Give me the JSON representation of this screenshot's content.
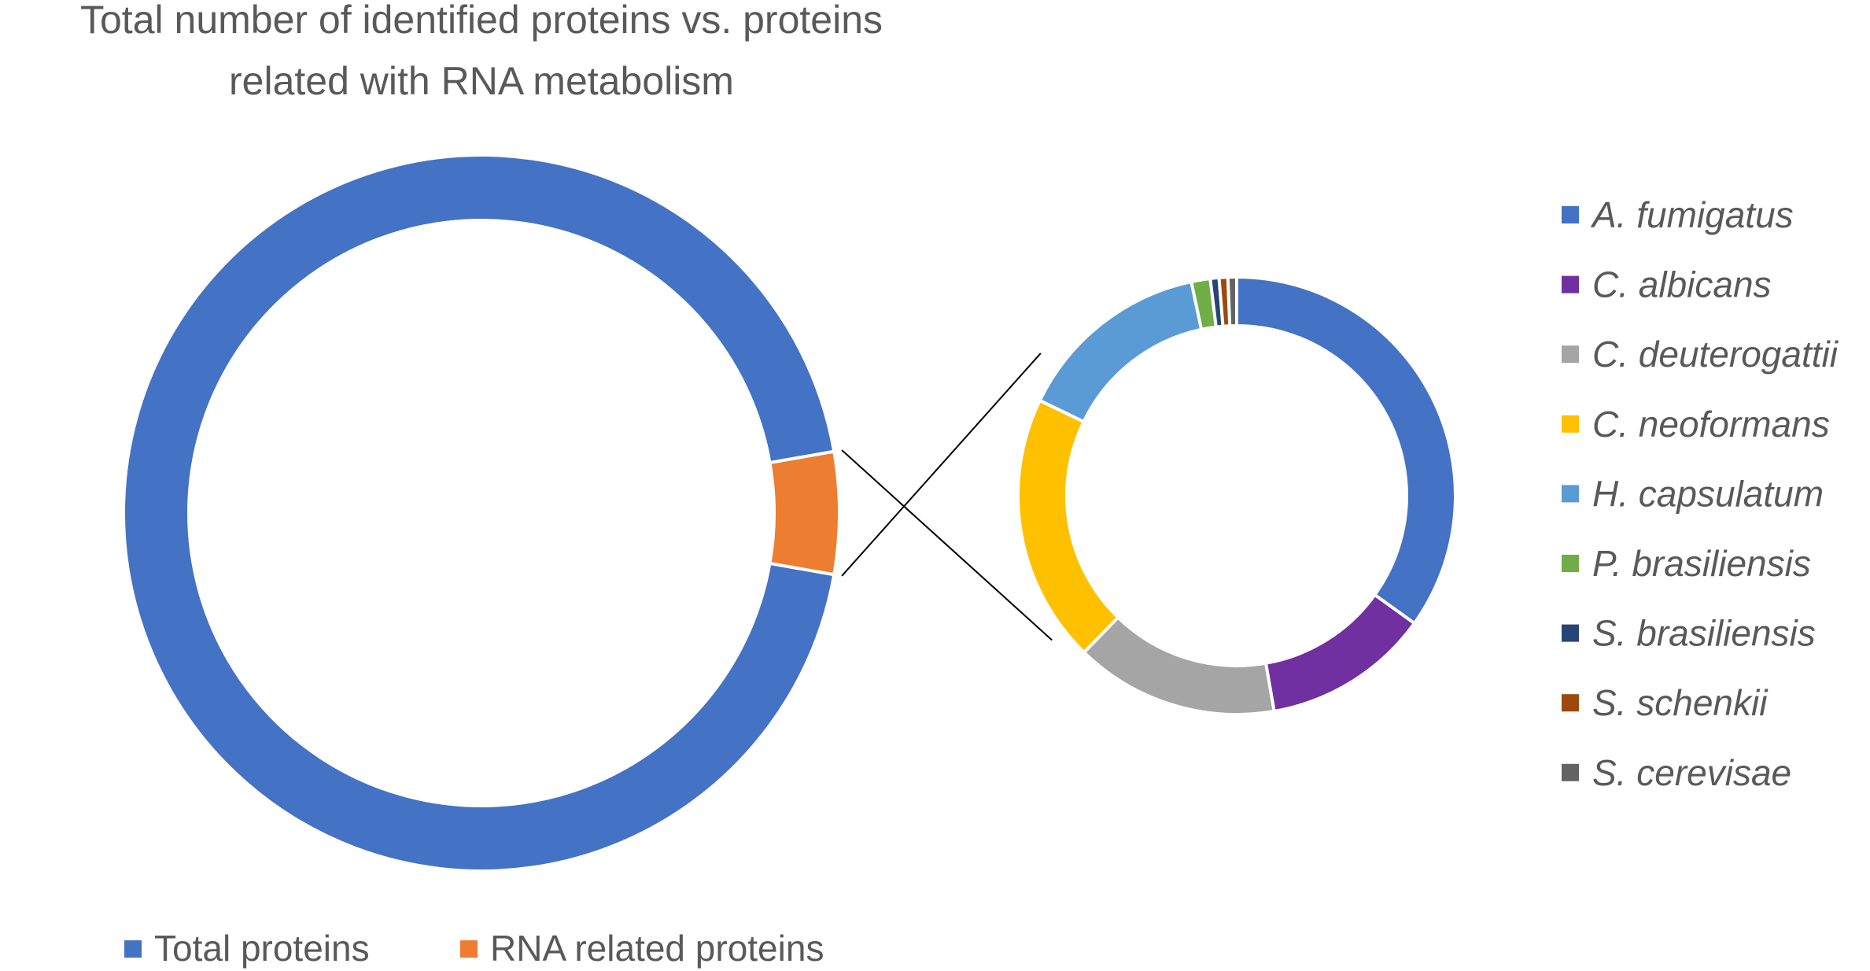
{
  "chart_data": [
    {
      "type": "donut",
      "title": "Total number of identified proteins vs. proteins related with RNA metabolism",
      "title_lines": [
        "Total number of identified proteins vs. proteins",
        "related with RNA metabolism"
      ],
      "legend_position": "bottom",
      "categories": [
        "Total proteins",
        "RNA related proteins"
      ],
      "values": [
        94.5,
        5.5
      ],
      "colors": [
        "#4472C4",
        "#ED7D31"
      ]
    },
    {
      "type": "donut",
      "title": "",
      "legend_position": "right",
      "categories": [
        "A. fumigatus",
        "C. albicans",
        "C. deuterogattii",
        "C. neoformans",
        "H. capsulatum",
        "P. brasiliensis",
        "S. brasiliensis",
        "S. schenkii",
        "S. cerevisae"
      ],
      "values": [
        32.5,
        11.5,
        14.0,
        18.5,
        13.5,
        1.3,
        0.6,
        0.6,
        0.6
      ],
      "colors": [
        "#4472C4",
        "#7030A0",
        "#A5A5A5",
        "#FFC000",
        "#5B9BD5",
        "#70AD47",
        "#264478",
        "#9E480E",
        "#636363"
      ]
    }
  ]
}
